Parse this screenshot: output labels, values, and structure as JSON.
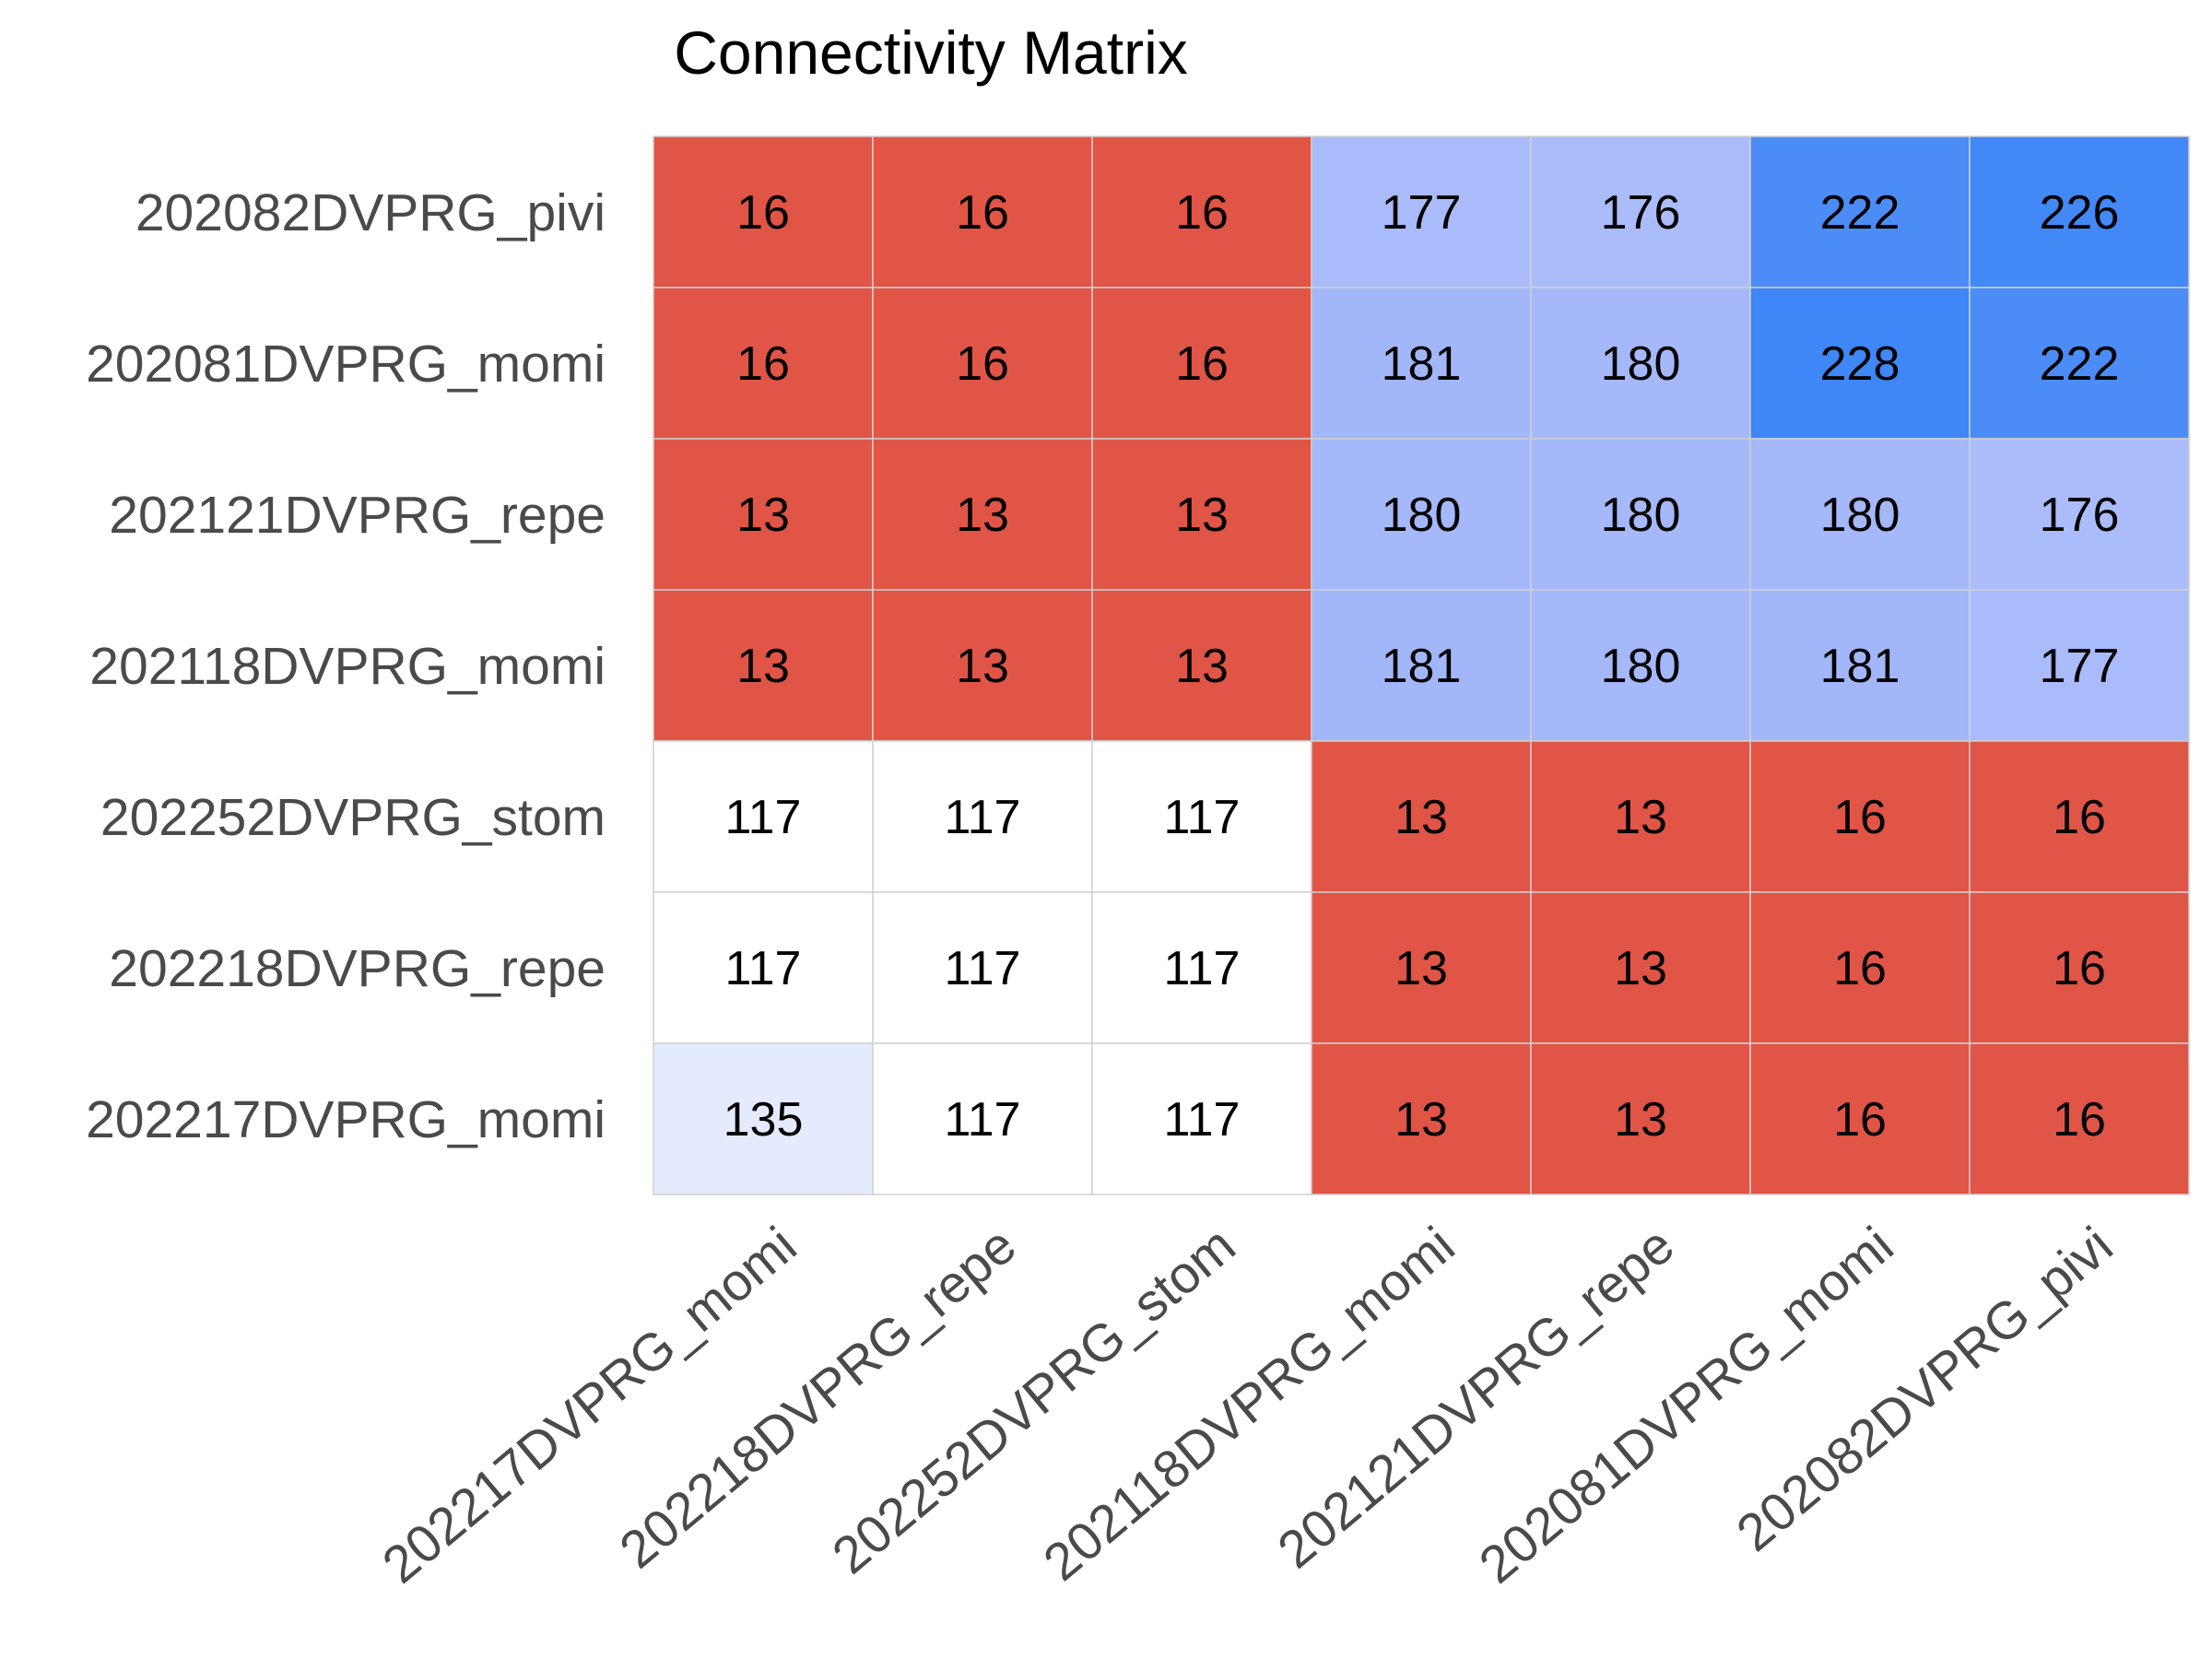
{
  "chart_data": {
    "type": "heatmap",
    "title": "Connectivity Matrix",
    "xlabel": "",
    "ylabel": "",
    "x_categories": [
      "202217DVPRG_momi",
      "202218DVPRG_repe",
      "202252DVPRG_stom",
      "202118DVPRG_momi",
      "202121DVPRG_repe",
      "202081DVPRG_momi",
      "202082DVPRG_pivi"
    ],
    "y_categories": [
      "202082DVPRG_pivi",
      "202081DVPRG_momi",
      "202121DVPRG_repe",
      "202118DVPRG_momi",
      "202252DVPRG_stom",
      "202218DVPRG_repe",
      "202217DVPRG_momi"
    ],
    "values": [
      [
        16,
        16,
        16,
        177,
        176,
        222,
        226
      ],
      [
        16,
        16,
        16,
        181,
        180,
        228,
        222
      ],
      [
        13,
        13,
        13,
        180,
        180,
        180,
        176
      ],
      [
        13,
        13,
        13,
        181,
        180,
        181,
        177
      ],
      [
        117,
        117,
        117,
        13,
        13,
        16,
        16
      ],
      [
        117,
        117,
        117,
        13,
        13,
        16,
        16
      ],
      [
        135,
        117,
        117,
        13,
        13,
        16,
        16
      ]
    ],
    "colormap": {
      "low": "#e05545",
      "mid": "#ffffff",
      "high": "#3f86f7",
      "mid_value": 117
    },
    "grid": true,
    "legend": "none",
    "annotations": "cell values shown"
  }
}
